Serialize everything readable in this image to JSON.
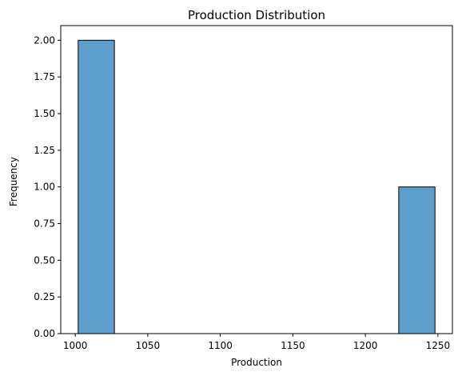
{
  "chart_data": {
    "type": "bar",
    "title": "Production Distribution",
    "xlabel": "Production",
    "ylabel": "Frequency",
    "xlim": [
      990,
      1260
    ],
    "ylim": [
      0,
      2.1
    ],
    "xticks": [
      1000,
      1050,
      1100,
      1150,
      1200,
      1250
    ],
    "yticks": [
      "0.00",
      "0.25",
      "0.50",
      "0.75",
      "1.00",
      "1.25",
      "1.50",
      "1.75",
      "2.00"
    ],
    "bins": [
      {
        "start": 1002,
        "end": 1027,
        "count": 2
      },
      {
        "start": 1223,
        "end": 1248,
        "count": 1
      }
    ],
    "bar_color": "#5f9ecb",
    "edge_color": "#000000",
    "grid": false,
    "legend": "none"
  }
}
